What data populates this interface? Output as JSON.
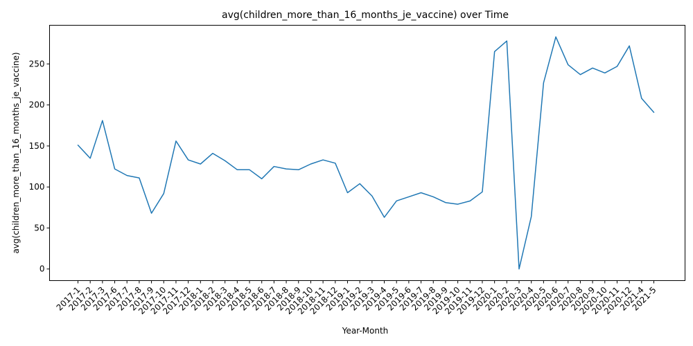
{
  "chart_data": {
    "type": "line",
    "title": "avg(children_more_than_16_months_je_vaccine) over Time",
    "xlabel": "Year-Month",
    "ylabel": "avg(children_more_than_16_months_je_vaccine)",
    "categories": [
      "2017-1",
      "2017-2",
      "2017-3",
      "2017-6",
      "2017-7",
      "2017-8",
      "2017-9",
      "2017-10",
      "2017-11",
      "2017-12",
      "2018-1",
      "2018-2",
      "2018-3",
      "2018-4",
      "2018-5",
      "2018-6",
      "2018-7",
      "2018-8",
      "2018-9",
      "2018-10",
      "2018-11",
      "2018-12",
      "2019-1",
      "2019-2",
      "2019-3",
      "2019-4",
      "2019-5",
      "2019-6",
      "2019-7",
      "2019-8",
      "2019-9",
      "2019-10",
      "2019-11",
      "2019-12",
      "2020-1",
      "2020-2",
      "2020-3",
      "2020-4",
      "2020-5",
      "2020-6",
      "2020-7",
      "2020-8",
      "2020-9",
      "2020-10",
      "2020-11",
      "2020-12",
      "2021-4",
      "2021-5"
    ],
    "series": [
      {
        "values": [
          151,
          135,
          181,
          122,
          114,
          111,
          68,
          92,
          156,
          133,
          128,
          141,
          132,
          121,
          121,
          110,
          125,
          122,
          121,
          128,
          133,
          129,
          93,
          104,
          89,
          63,
          83,
          88,
          93,
          88,
          81,
          79,
          83,
          94,
          265,
          278,
          0,
          64,
          227,
          283,
          249,
          237,
          245,
          239,
          247,
          272,
          208,
          191
        ],
        "color": "#1f77b4"
      }
    ],
    "yticks": [
      0,
      50,
      100,
      150,
      200,
      250
    ],
    "ylim": [
      -14.15,
      297.15
    ],
    "grid": false,
    "legend": "none"
  }
}
